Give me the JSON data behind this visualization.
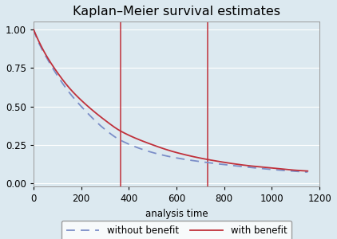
{
  "title": "Kaplan–Meier survival estimates",
  "xlabel": "analysis time",
  "xlim": [
    0,
    1200
  ],
  "ylim": [
    -0.02,
    1.05
  ],
  "xticks": [
    0,
    200,
    400,
    600,
    800,
    1000,
    1200
  ],
  "yticks": [
    0.0,
    0.25,
    0.5,
    0.75,
    1.0
  ],
  "vlines": [
    365,
    730
  ],
  "vline_color": "#c0303a",
  "background_color": "#dce9f0",
  "line_without_color": "#7b8ec8",
  "line_with_color": "#c0303a",
  "legend_labels": [
    "without benefit",
    "with benefit"
  ],
  "title_fontsize": 11.5,
  "label_fontsize": 8.5,
  "tick_fontsize": 8.5,
  "curve_with": {
    "t": [
      0,
      20,
      50,
      100,
      150,
      200,
      300,
      365,
      500,
      600,
      730,
      900,
      1000,
      1100,
      1150
    ],
    "s": [
      1.0,
      0.93,
      0.84,
      0.72,
      0.62,
      0.54,
      0.41,
      0.34,
      0.25,
      0.2,
      0.155,
      0.115,
      0.1,
      0.085,
      0.08
    ]
  },
  "curve_without": {
    "t": [
      0,
      20,
      50,
      100,
      150,
      200,
      300,
      365,
      500,
      600,
      730,
      900,
      1000,
      1100,
      1150
    ],
    "s": [
      1.0,
      0.92,
      0.83,
      0.7,
      0.59,
      0.5,
      0.35,
      0.28,
      0.2,
      0.165,
      0.135,
      0.105,
      0.09,
      0.078,
      0.073
    ]
  }
}
